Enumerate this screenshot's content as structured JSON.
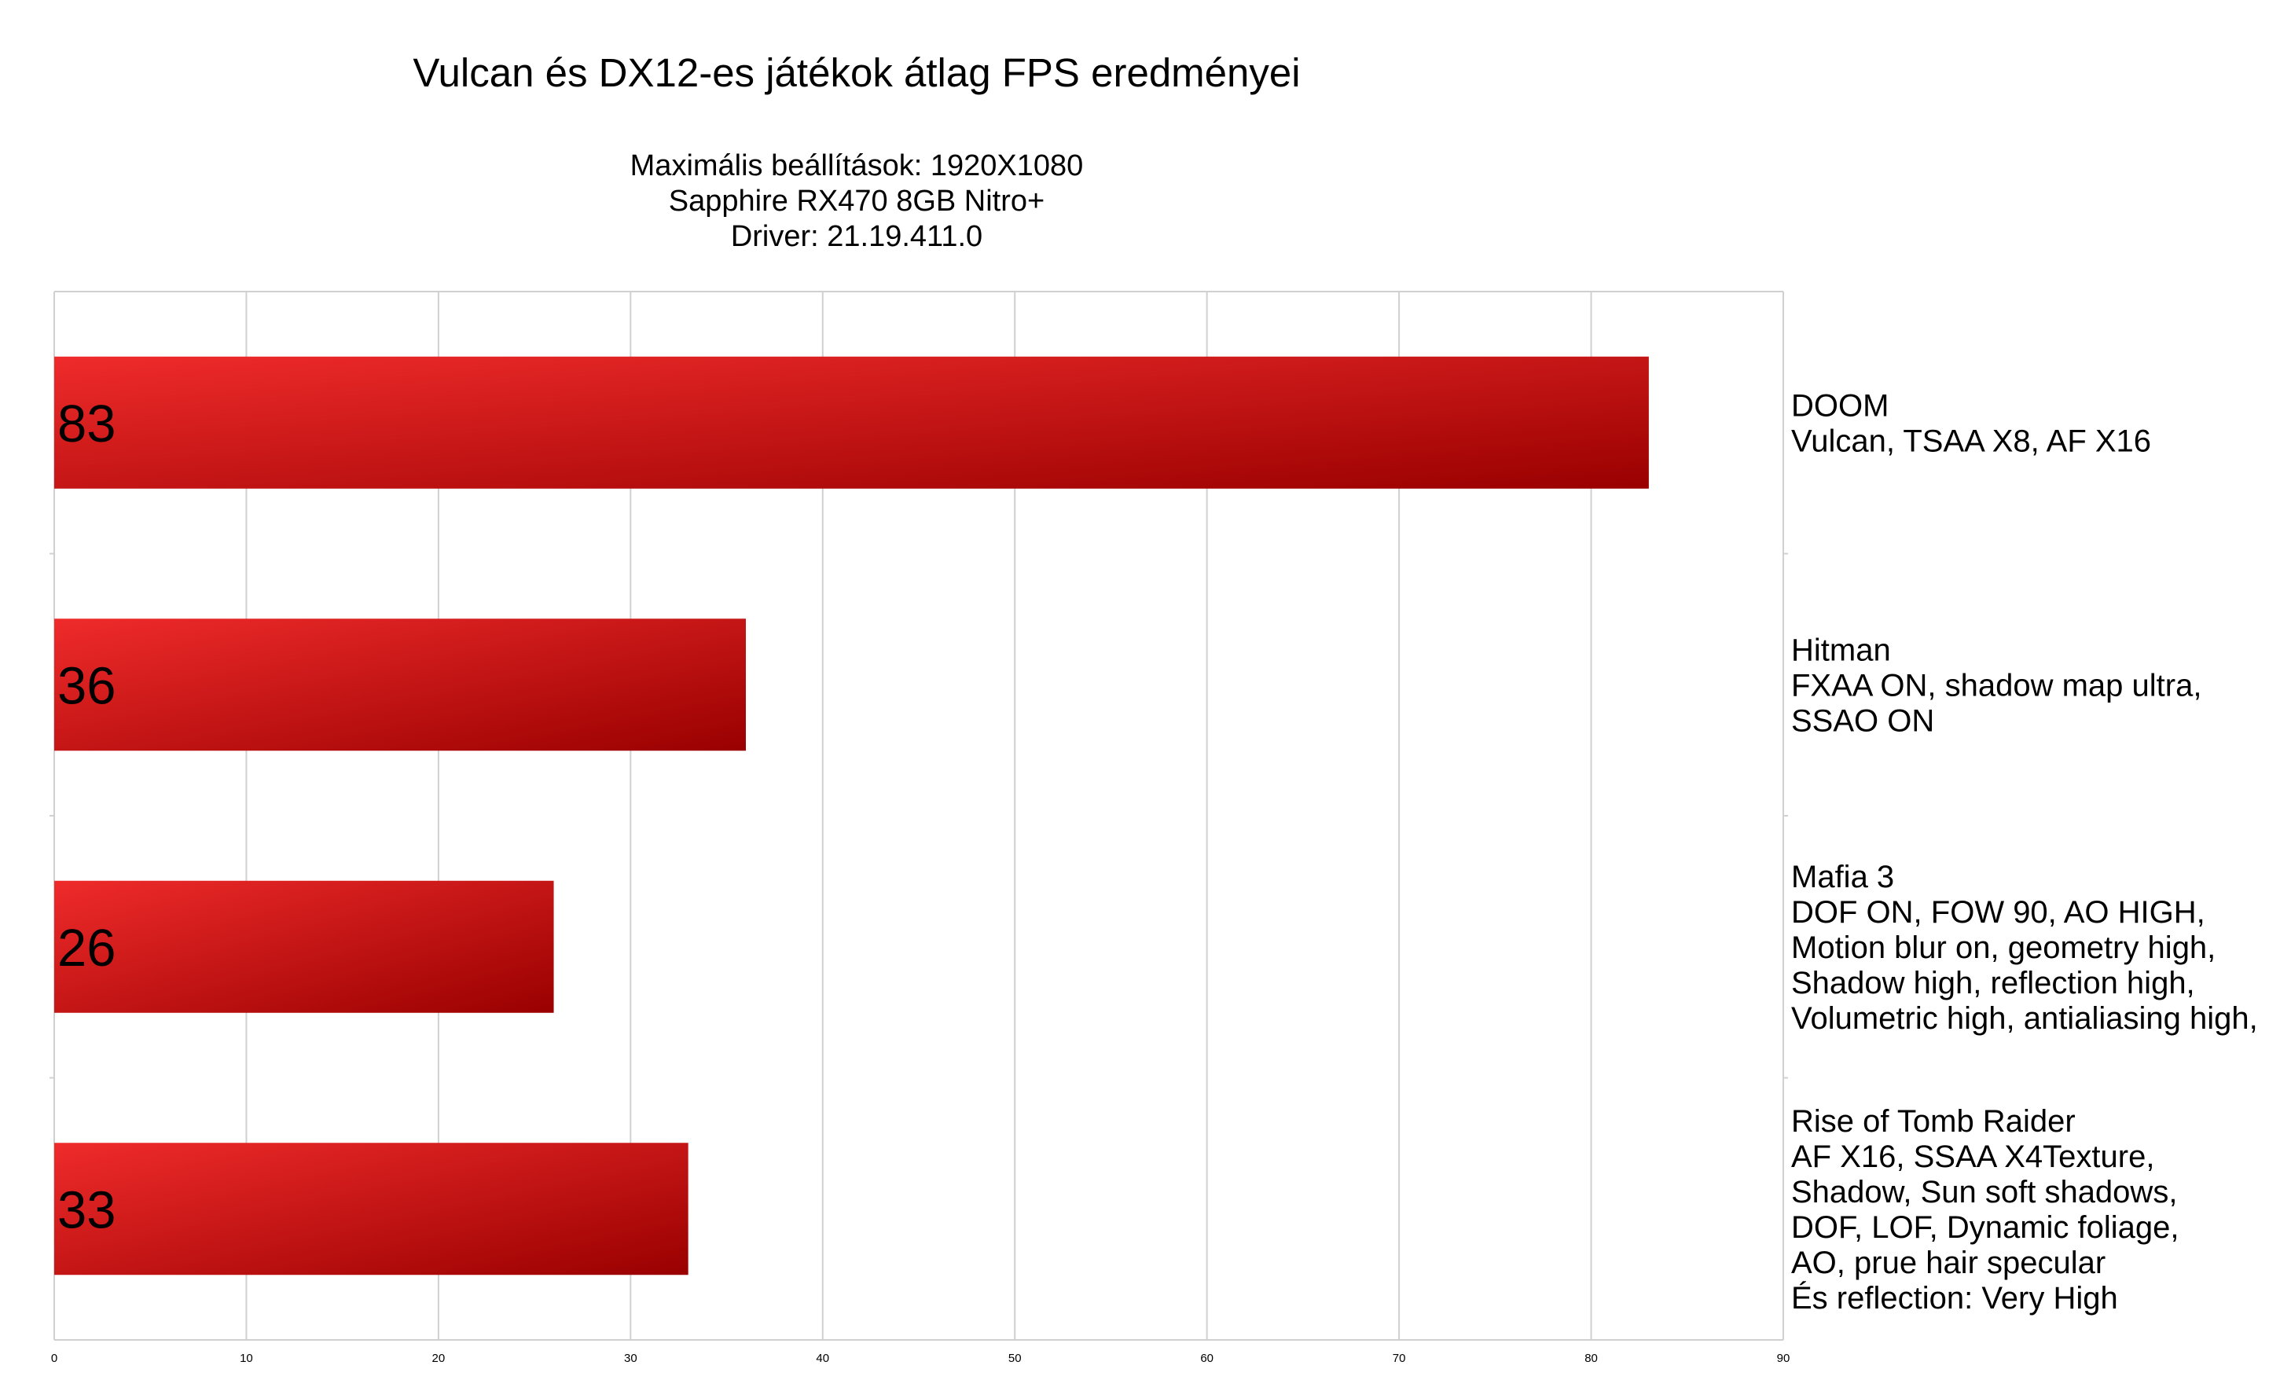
{
  "chart_data": {
    "type": "bar",
    "orientation": "horizontal",
    "title": "Vulcan és DX12-es játékok átlag FPS eredményei",
    "subtitle_lines": [
      "Maximális beállítások: 1920X1080",
      "Sapphire RX470 8GB Nitro+",
      "Driver: 21.19.411.0"
    ],
    "categories": [
      [
        "DOOM",
        "Vulcan, TSAA X8, AF X16"
      ],
      [
        "Hitman",
        "FXAA ON, shadow map ultra,",
        "SSAO ON"
      ],
      [
        "Mafia 3",
        "DOF ON, FOW 90, AO HIGH,",
        "Motion blur on, geometry high,",
        "Shadow high, reflection high,",
        "Volumetric high, antialiasing high,"
      ],
      [
        "Rise of Tomb Raider",
        "AF X16, SSAA X4Texture,",
        "Shadow, Sun soft shadows,",
        "DOF, LOF, Dynamic foliage,",
        "AO, prue hair specular",
        "És reflection: Very High"
      ]
    ],
    "values": [
      83,
      36,
      26,
      33
    ],
    "data_labels": [
      "83",
      "36",
      "26",
      "33"
    ],
    "xlim": [
      0,
      90
    ],
    "x_ticks": [
      "0",
      "10",
      "20",
      "30",
      "40",
      "50",
      "60",
      "70",
      "80",
      "90"
    ],
    "grid": true,
    "legend": "none",
    "colors": {
      "bar_light": "#ef2b2b",
      "bar_dark": "#9a0000",
      "grid": "#d0d0d0"
    }
  }
}
